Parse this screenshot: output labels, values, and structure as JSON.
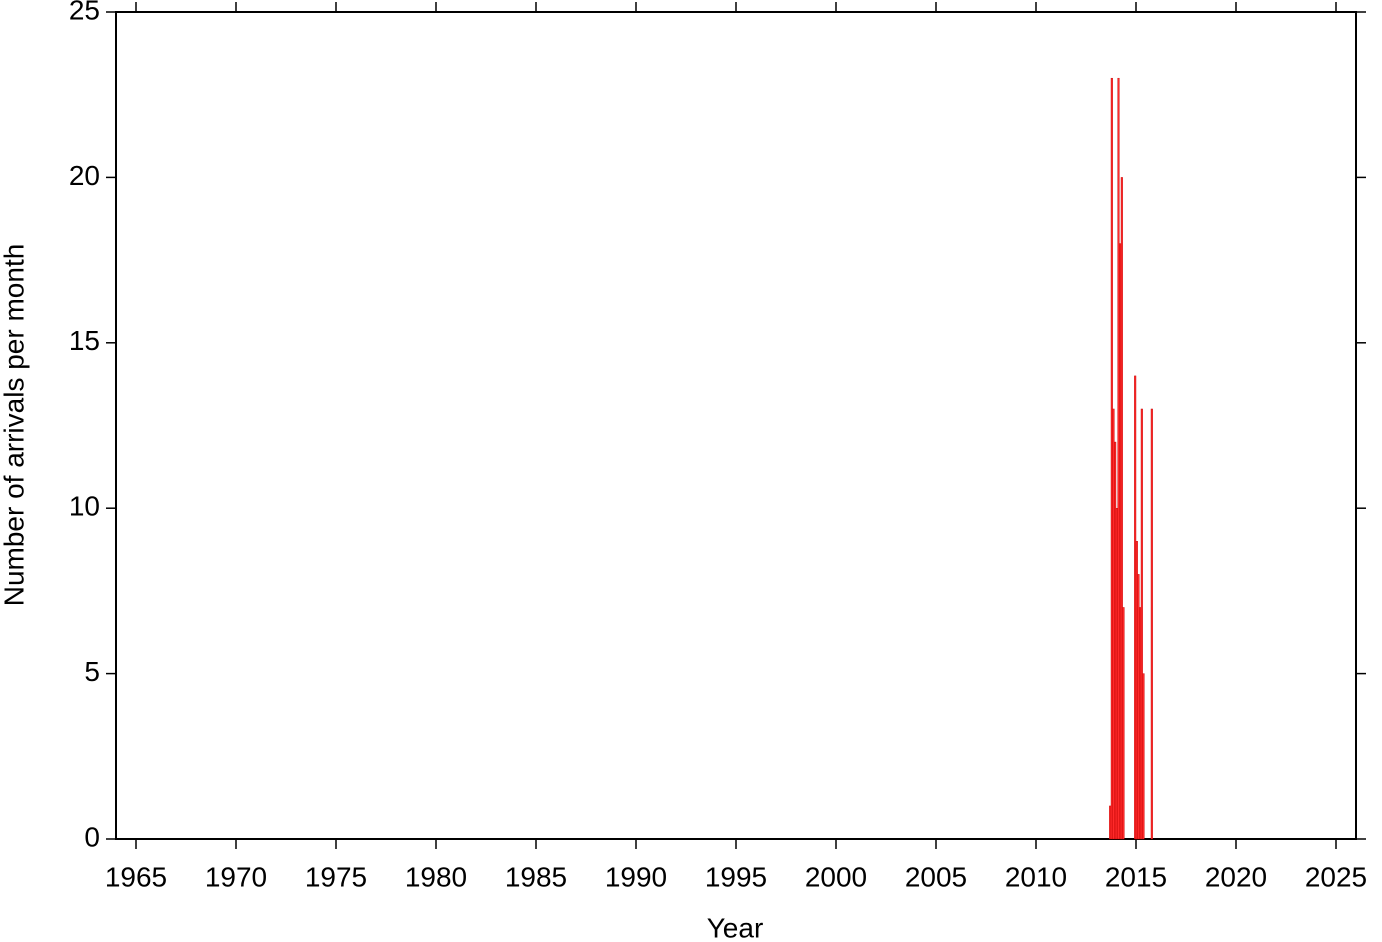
{
  "chart_data": {
    "type": "histogram",
    "xlabel": "Year",
    "ylabel": "Number of arrivals per month",
    "bins": [
      2013.667,
      2013.75,
      2013.833,
      2013.917,
      2014,
      2014.083,
      2014.167,
      2014.25,
      2014.333,
      2014.417,
      2014.5,
      2014.583,
      2014.667,
      2014.75,
      2014.833,
      2014.917,
      2015,
      2015.083,
      2015.167,
      2015.25,
      2015.333,
      2015.417,
      2015.5,
      2015.583,
      2015.667,
      2015.75,
      2015.833
    ],
    "values": [
      1,
      23,
      13,
      12,
      10,
      23,
      18,
      20,
      7,
      0,
      0,
      0,
      0,
      0,
      0,
      14,
      9,
      8,
      7,
      13,
      5,
      0,
      0,
      0,
      0,
      13
    ],
    "color": "#ff2a2a",
    "xlim": [
      1964,
      2026
    ],
    "xticks": [
      1965,
      1970,
      1975,
      1980,
      1985,
      1990,
      1995,
      2000,
      2005,
      2010,
      2015,
      2020,
      2025
    ],
    "ylim": [
      0,
      25
    ],
    "yticks": [
      0,
      5,
      10,
      15,
      20,
      25
    ]
  }
}
